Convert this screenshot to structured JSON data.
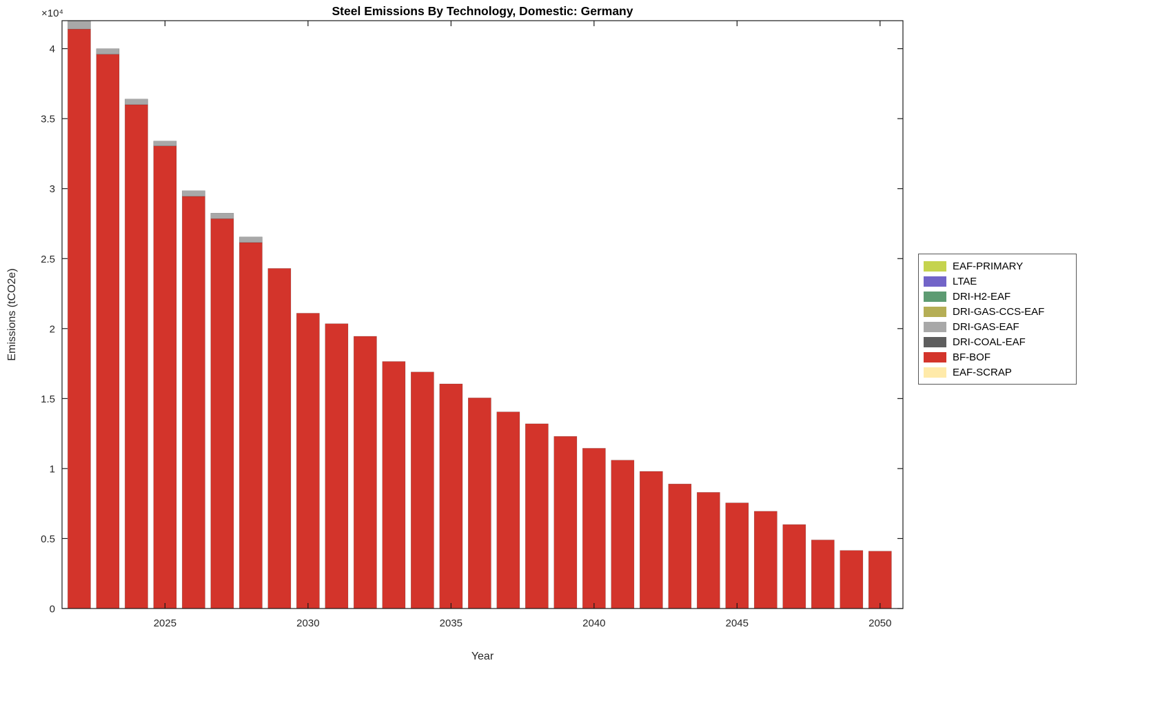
{
  "figure": {
    "title": "Steel Emissions By Technology, Domestic: Germany",
    "xlabel": "Year",
    "ylabel": "Emissions (tCO2e)",
    "y_multiplier": "×10⁴"
  },
  "chart_data": {
    "type": "bar",
    "stacked": true,
    "title": "Steel Emissions By Technology, Domestic: Germany",
    "xlabel": "Year",
    "ylabel": "Emissions (tCO2e)",
    "grid": false,
    "legend_position": "outside-right",
    "x": [
      2022,
      2023,
      2024,
      2025,
      2026,
      2027,
      2028,
      2029,
      2030,
      2031,
      2032,
      2033,
      2034,
      2035,
      2036,
      2037,
      2038,
      2039,
      2040,
      2041,
      2042,
      2043,
      2044,
      2045,
      2046,
      2047,
      2048,
      2049,
      2050
    ],
    "series": [
      {
        "name": "BF-BOF",
        "color": "#d3342b",
        "values": [
          41400,
          39600,
          36000,
          33050,
          29450,
          27850,
          26150,
          24300,
          21100,
          20350,
          19450,
          17650,
          16900,
          16050,
          15050,
          14050,
          13200,
          12300,
          11450,
          10600,
          9800,
          8900,
          8300,
          7550,
          6950,
          6000,
          4900,
          4150,
          4100
        ]
      },
      {
        "name": "DRI-GAS-EAF",
        "color": "#a8a8a8",
        "values": [
          600,
          400,
          400,
          350,
          400,
          400,
          400,
          0,
          0,
          0,
          0,
          0,
          0,
          0,
          0,
          0,
          0,
          0,
          0,
          0,
          0,
          0,
          0,
          0,
          0,
          0,
          0,
          0,
          0
        ]
      }
    ],
    "legend": [
      {
        "label": "EAF-PRIMARY",
        "color": "#c5d34e"
      },
      {
        "label": "LTAE",
        "color": "#7264c8"
      },
      {
        "label": "DRI-H2-EAF",
        "color": "#5d9b72"
      },
      {
        "label": "DRI-GAS-CCS-EAF",
        "color": "#b5ae55"
      },
      {
        "label": "DRI-GAS-EAF",
        "color": "#a8a8a8"
      },
      {
        "label": "DRI-COAL-EAF",
        "color": "#5e5e5e"
      },
      {
        "label": "BF-BOF",
        "color": "#d3342b"
      },
      {
        "label": "EAF-SCRAP",
        "color": "#ffeaa9"
      }
    ],
    "xticks": [
      2025,
      2030,
      2035,
      2040,
      2045,
      2050
    ],
    "yticks": [
      0,
      0.5,
      1,
      1.5,
      2,
      2.5,
      3,
      3.5,
      4
    ],
    "ytick_unit": 10000,
    "xlim": [
      2021.4,
      2050.8
    ],
    "ylim": [
      0,
      42000
    ],
    "bar_width_fraction": 0.8,
    "axis_color": "#1a1a1a"
  }
}
